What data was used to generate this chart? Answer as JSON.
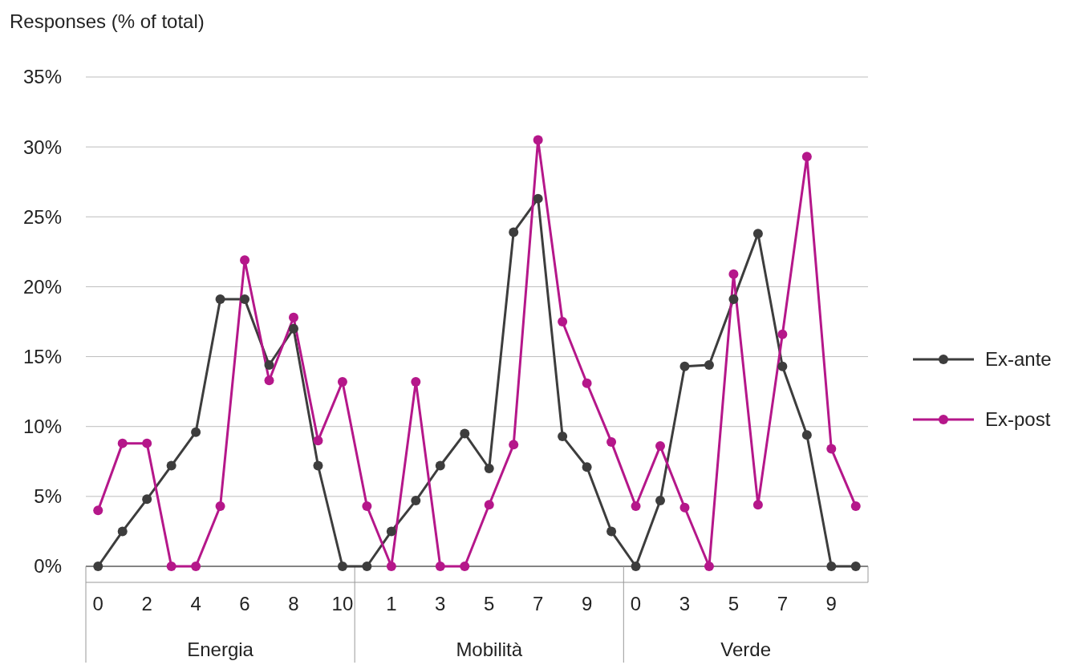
{
  "chart_data": {
    "type": "line",
    "ylabel": "Responses (% of total)",
    "categories": [
      "0",
      null,
      "2",
      null,
      "4",
      null,
      "6",
      null,
      "8",
      null,
      "10",
      null,
      "1",
      null,
      "3",
      null,
      "5",
      null,
      "7",
      null,
      "9",
      null,
      "0",
      null,
      "3",
      null,
      "5",
      null,
      "7",
      null,
      "9",
      null
    ],
    "series": [
      {
        "name": "Ex-ante",
        "color": "#3d3d3d",
        "values": [
          0,
          2.5,
          4.8,
          7.2,
          9.6,
          19.1,
          19.1,
          14.4,
          17.0,
          7.2,
          0,
          0,
          2.5,
          4.7,
          7.2,
          9.5,
          7.0,
          23.9,
          26.3,
          9.3,
          7.1,
          2.5,
          0,
          4.7,
          14.3,
          14.4,
          19.1,
          23.8,
          14.3,
          9.4,
          0,
          0
        ]
      },
      {
        "name": "Ex-post",
        "color": "#b5178a",
        "values": [
          4.0,
          8.8,
          8.8,
          0,
          0,
          4.3,
          21.9,
          13.3,
          17.8,
          9.0,
          13.2,
          4.3,
          0,
          13.2,
          0,
          0,
          4.4,
          8.7,
          30.5,
          17.5,
          13.1,
          8.9,
          4.3,
          8.6,
          4.2,
          0,
          20.9,
          4.4,
          16.6,
          29.3,
          8.4,
          4.3
        ]
      }
    ],
    "ylim": [
      0,
      35
    ],
    "yticks": [
      {
        "value": 0,
        "label": "0%"
      },
      {
        "value": 5,
        "label": "5%"
      },
      {
        "value": 10,
        "label": "10%"
      },
      {
        "value": 15,
        "label": "15%"
      },
      {
        "value": 20,
        "label": "20%"
      },
      {
        "value": 25,
        "label": "25%"
      },
      {
        "value": 30,
        "label": "30%"
      },
      {
        "value": 35,
        "label": "35%"
      }
    ],
    "grid": "y",
    "legend": "right",
    "marker": "circle",
    "line_style": "solid",
    "annotations": [
      "Energia",
      "Mobilità",
      "Verde"
    ]
  }
}
